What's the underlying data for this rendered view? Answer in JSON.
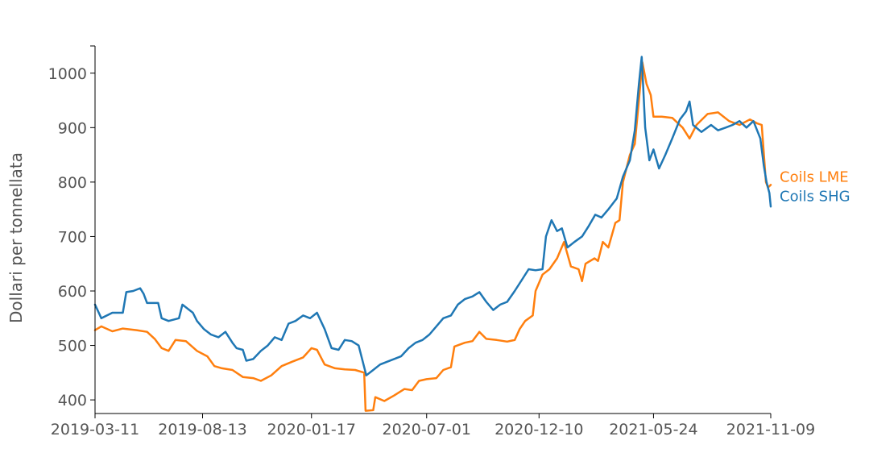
{
  "chart_data": {
    "type": "line",
    "title": "",
    "xlabel": "",
    "ylabel": "Dollari per tonnellata",
    "x_type": "date",
    "xlim": [
      "2019-03-11",
      "2021-11-09"
    ],
    "ylim": [
      375,
      1050
    ],
    "x_ticks": [
      "2019-03-11",
      "2019-08-13",
      "2020-01-17",
      "2020-07-01",
      "2020-12-10",
      "2021-05-24",
      "2021-11-09"
    ],
    "y_ticks": [
      400,
      500,
      600,
      700,
      800,
      900,
      1000
    ],
    "grid": false,
    "legend": "labels at line ends (right)",
    "series": [
      {
        "name": "Coils LME",
        "color": "#ff7f0e",
        "points": [
          [
            "2019-03-11",
            528
          ],
          [
            "2019-03-20",
            535
          ],
          [
            "2019-04-05",
            526
          ],
          [
            "2019-04-20",
            531
          ],
          [
            "2019-05-10",
            528
          ],
          [
            "2019-05-25",
            525
          ],
          [
            "2019-06-05",
            512
          ],
          [
            "2019-06-15",
            495
          ],
          [
            "2019-06-25",
            490
          ],
          [
            "2019-07-05",
            510
          ],
          [
            "2019-07-20",
            508
          ],
          [
            "2019-08-05",
            490
          ],
          [
            "2019-08-20",
            480
          ],
          [
            "2019-08-30",
            462
          ],
          [
            "2019-09-10",
            458
          ],
          [
            "2019-09-25",
            455
          ],
          [
            "2019-10-10",
            442
          ],
          [
            "2019-10-25",
            440
          ],
          [
            "2019-11-05",
            435
          ],
          [
            "2019-11-20",
            445
          ],
          [
            "2019-12-05",
            462
          ],
          [
            "2019-12-20",
            470
          ],
          [
            "2020-01-05",
            478
          ],
          [
            "2020-01-17",
            495
          ],
          [
            "2020-01-25",
            492
          ],
          [
            "2020-02-05",
            465
          ],
          [
            "2020-02-20",
            458
          ],
          [
            "2020-03-05",
            456
          ],
          [
            "2020-03-20",
            455
          ],
          [
            "2020-04-02",
            450
          ],
          [
            "2020-04-04",
            380
          ],
          [
            "2020-04-15",
            381
          ],
          [
            "2020-04-18",
            405
          ],
          [
            "2020-05-01",
            398
          ],
          [
            "2020-05-15",
            408
          ],
          [
            "2020-05-30",
            420
          ],
          [
            "2020-06-10",
            418
          ],
          [
            "2020-06-20",
            435
          ],
          [
            "2020-07-01",
            438
          ],
          [
            "2020-07-15",
            440
          ],
          [
            "2020-07-25",
            455
          ],
          [
            "2020-08-05",
            460
          ],
          [
            "2020-08-10",
            498
          ],
          [
            "2020-08-25",
            505
          ],
          [
            "2020-09-05",
            508
          ],
          [
            "2020-09-15",
            525
          ],
          [
            "2020-09-25",
            512
          ],
          [
            "2020-10-10",
            510
          ],
          [
            "2020-10-25",
            507
          ],
          [
            "2020-11-05",
            510
          ],
          [
            "2020-11-12",
            530
          ],
          [
            "2020-11-20",
            545
          ],
          [
            "2020-12-01",
            555
          ],
          [
            "2020-12-05",
            600
          ],
          [
            "2020-12-15",
            630
          ],
          [
            "2020-12-25",
            640
          ],
          [
            "2021-01-05",
            660
          ],
          [
            "2021-01-15",
            690
          ],
          [
            "2021-01-25",
            645
          ],
          [
            "2021-02-05",
            640
          ],
          [
            "2021-02-10",
            618
          ],
          [
            "2021-02-15",
            650
          ],
          [
            "2021-02-28",
            660
          ],
          [
            "2021-03-05",
            655
          ],
          [
            "2021-03-12",
            690
          ],
          [
            "2021-03-20",
            680
          ],
          [
            "2021-03-30",
            725
          ],
          [
            "2021-04-05",
            730
          ],
          [
            "2021-04-10",
            800
          ],
          [
            "2021-04-20",
            850
          ],
          [
            "2021-04-27",
            870
          ],
          [
            "2021-05-03",
            950
          ],
          [
            "2021-05-08",
            1020
          ],
          [
            "2021-05-14",
            980
          ],
          [
            "2021-05-20",
            960
          ],
          [
            "2021-05-24",
            920
          ],
          [
            "2021-06-05",
            920
          ],
          [
            "2021-06-20",
            918
          ],
          [
            "2021-07-05",
            900
          ],
          [
            "2021-07-15",
            880
          ],
          [
            "2021-07-25",
            905
          ],
          [
            "2021-08-10",
            925
          ],
          [
            "2021-08-25",
            928
          ],
          [
            "2021-09-10",
            912
          ],
          [
            "2021-09-25",
            905
          ],
          [
            "2021-10-10",
            915
          ],
          [
            "2021-10-20",
            908
          ],
          [
            "2021-10-27",
            905
          ],
          [
            "2021-11-02",
            800
          ],
          [
            "2021-11-05",
            790
          ],
          [
            "2021-11-09",
            795
          ]
        ]
      },
      {
        "name": "Coils SHG",
        "color": "#1f77b4",
        "points": [
          [
            "2019-03-11",
            575
          ],
          [
            "2019-03-20",
            550
          ],
          [
            "2019-04-05",
            560
          ],
          [
            "2019-04-20",
            560
          ],
          [
            "2019-04-25",
            598
          ],
          [
            "2019-05-05",
            600
          ],
          [
            "2019-05-15",
            605
          ],
          [
            "2019-05-20",
            595
          ],
          [
            "2019-05-25",
            578
          ],
          [
            "2019-06-10",
            578
          ],
          [
            "2019-06-15",
            550
          ],
          [
            "2019-06-25",
            545
          ],
          [
            "2019-07-10",
            550
          ],
          [
            "2019-07-15",
            575
          ],
          [
            "2019-07-30",
            560
          ],
          [
            "2019-08-05",
            545
          ],
          [
            "2019-08-15",
            530
          ],
          [
            "2019-08-25",
            520
          ],
          [
            "2019-09-05",
            515
          ],
          [
            "2019-09-15",
            525
          ],
          [
            "2019-09-25",
            505
          ],
          [
            "2019-10-01",
            495
          ],
          [
            "2019-10-10",
            492
          ],
          [
            "2019-10-15",
            472
          ],
          [
            "2019-10-25",
            475
          ],
          [
            "2019-11-05",
            490
          ],
          [
            "2019-11-15",
            500
          ],
          [
            "2019-11-25",
            515
          ],
          [
            "2019-12-05",
            510
          ],
          [
            "2019-12-15",
            540
          ],
          [
            "2019-12-25",
            545
          ],
          [
            "2020-01-05",
            555
          ],
          [
            "2020-01-15",
            550
          ],
          [
            "2020-01-25",
            560
          ],
          [
            "2020-02-05",
            530
          ],
          [
            "2020-02-15",
            495
          ],
          [
            "2020-02-25",
            492
          ],
          [
            "2020-03-05",
            510
          ],
          [
            "2020-03-15",
            508
          ],
          [
            "2020-03-25",
            500
          ],
          [
            "2020-04-05",
            445
          ],
          [
            "2020-04-15",
            455
          ],
          [
            "2020-04-25",
            465
          ],
          [
            "2020-05-05",
            470
          ],
          [
            "2020-05-15",
            475
          ],
          [
            "2020-05-25",
            480
          ],
          [
            "2020-06-05",
            495
          ],
          [
            "2020-06-15",
            505
          ],
          [
            "2020-06-25",
            510
          ],
          [
            "2020-07-05",
            520
          ],
          [
            "2020-07-15",
            535
          ],
          [
            "2020-07-25",
            550
          ],
          [
            "2020-08-05",
            555
          ],
          [
            "2020-08-15",
            575
          ],
          [
            "2020-08-25",
            585
          ],
          [
            "2020-09-05",
            590
          ],
          [
            "2020-09-15",
            598
          ],
          [
            "2020-09-25",
            580
          ],
          [
            "2020-10-05",
            565
          ],
          [
            "2020-10-15",
            575
          ],
          [
            "2020-10-25",
            580
          ],
          [
            "2020-11-05",
            600
          ],
          [
            "2020-11-15",
            620
          ],
          [
            "2020-11-25",
            640
          ],
          [
            "2020-12-05",
            638
          ],
          [
            "2020-12-15",
            640
          ],
          [
            "2020-12-20",
            700
          ],
          [
            "2020-12-28",
            730
          ],
          [
            "2021-01-05",
            710
          ],
          [
            "2021-01-12",
            715
          ],
          [
            "2021-01-20",
            680
          ],
          [
            "2021-01-30",
            690
          ],
          [
            "2021-02-10",
            700
          ],
          [
            "2021-02-20",
            720
          ],
          [
            "2021-03-01",
            740
          ],
          [
            "2021-03-10",
            735
          ],
          [
            "2021-03-20",
            750
          ],
          [
            "2021-04-01",
            770
          ],
          [
            "2021-04-10",
            810
          ],
          [
            "2021-04-20",
            840
          ],
          [
            "2021-04-27",
            895
          ],
          [
            "2021-05-03",
            980
          ],
          [
            "2021-05-07",
            1030
          ],
          [
            "2021-05-12",
            900
          ],
          [
            "2021-05-18",
            840
          ],
          [
            "2021-05-24",
            860
          ],
          [
            "2021-06-01",
            825
          ],
          [
            "2021-06-10",
            850
          ],
          [
            "2021-06-20",
            880
          ],
          [
            "2021-07-01",
            915
          ],
          [
            "2021-07-10",
            930
          ],
          [
            "2021-07-15",
            948
          ],
          [
            "2021-07-20",
            905
          ],
          [
            "2021-08-01",
            892
          ],
          [
            "2021-08-15",
            905
          ],
          [
            "2021-08-25",
            895
          ],
          [
            "2021-09-05",
            900
          ],
          [
            "2021-09-15",
            905
          ],
          [
            "2021-09-25",
            912
          ],
          [
            "2021-10-05",
            900
          ],
          [
            "2021-10-15",
            912
          ],
          [
            "2021-10-25",
            880
          ],
          [
            "2021-10-30",
            830
          ],
          [
            "2021-11-03",
            800
          ],
          [
            "2021-11-07",
            780
          ],
          [
            "2021-11-09",
            755
          ]
        ]
      }
    ]
  }
}
